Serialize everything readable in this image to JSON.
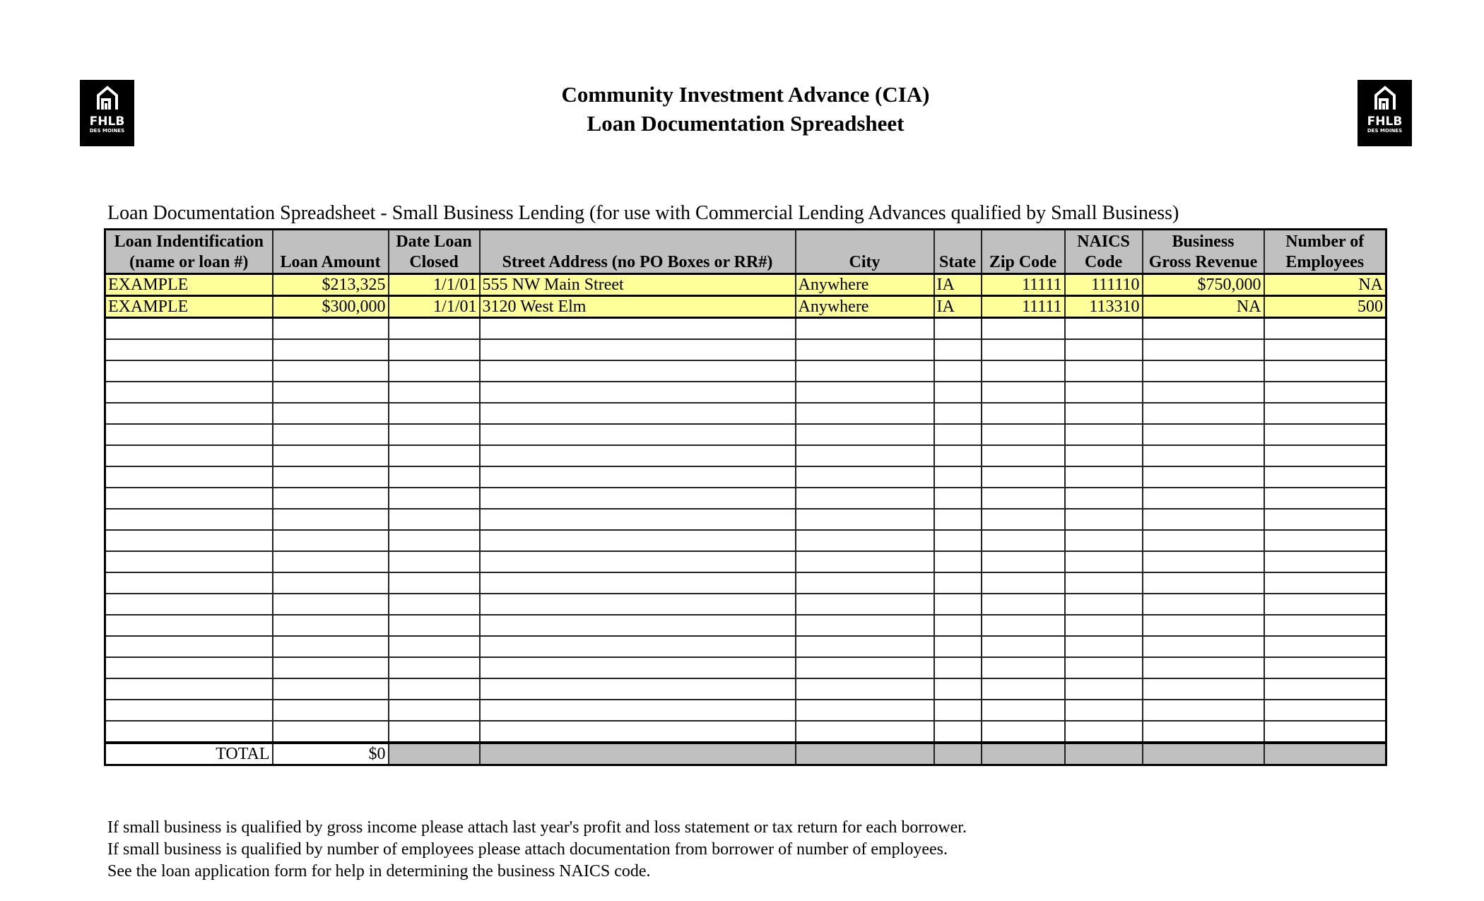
{
  "logo": {
    "name": "FHLB",
    "sub": "DES MOINES",
    "icon": "house-icon"
  },
  "header": {
    "title_line1": "Community Investment Advance (CIA)",
    "title_line2": "Loan Documentation Spreadsheet"
  },
  "subtitle": "Loan Documentation Spreadsheet - Small Business Lending (for use with Commercial Lending Advances qualified by Small Business)",
  "table": {
    "columns": [
      {
        "line1": "Loan Indentification",
        "line2": "(name or loan #)"
      },
      {
        "line1": "",
        "line2": "Loan Amount"
      },
      {
        "line1": "Date Loan",
        "line2": "Closed"
      },
      {
        "line1": "",
        "line2": "Street Address (no PO Boxes or RR#)"
      },
      {
        "line1": "",
        "line2": "City"
      },
      {
        "line1": "",
        "line2": "State"
      },
      {
        "line1": "",
        "line2": "Zip Code"
      },
      {
        "line1": "NAICS",
        "line2": "Code"
      },
      {
        "line1": "Business",
        "line2": "Gross Revenue"
      },
      {
        "line1": "Number of",
        "line2": "Employees"
      }
    ],
    "rows": [
      [
        "EXAMPLE",
        "$213,325",
        "1/1/01",
        "555 NW Main Street",
        "Anywhere",
        "IA",
        "11111",
        "111110",
        "$750,000",
        "NA"
      ],
      [
        "EXAMPLE",
        "$300,000",
        "1/1/01",
        "3120 West Elm",
        "Anywhere",
        "IA",
        "11111",
        "113310",
        "NA",
        "500"
      ]
    ],
    "blank_rows": 20,
    "total_label": "TOTAL",
    "total_value": "$0"
  },
  "notes": [
    "If small business is qualified by gross income please attach last year's profit and loss statement or tax return for each borrower.",
    "If small business is qualified by number of employees please attach documentation from borrower of number of employees.",
    "See the loan application form for help in determining the business NAICS code."
  ],
  "colors": {
    "example_row": "#ffff99",
    "header": "#c0c0c0"
  }
}
